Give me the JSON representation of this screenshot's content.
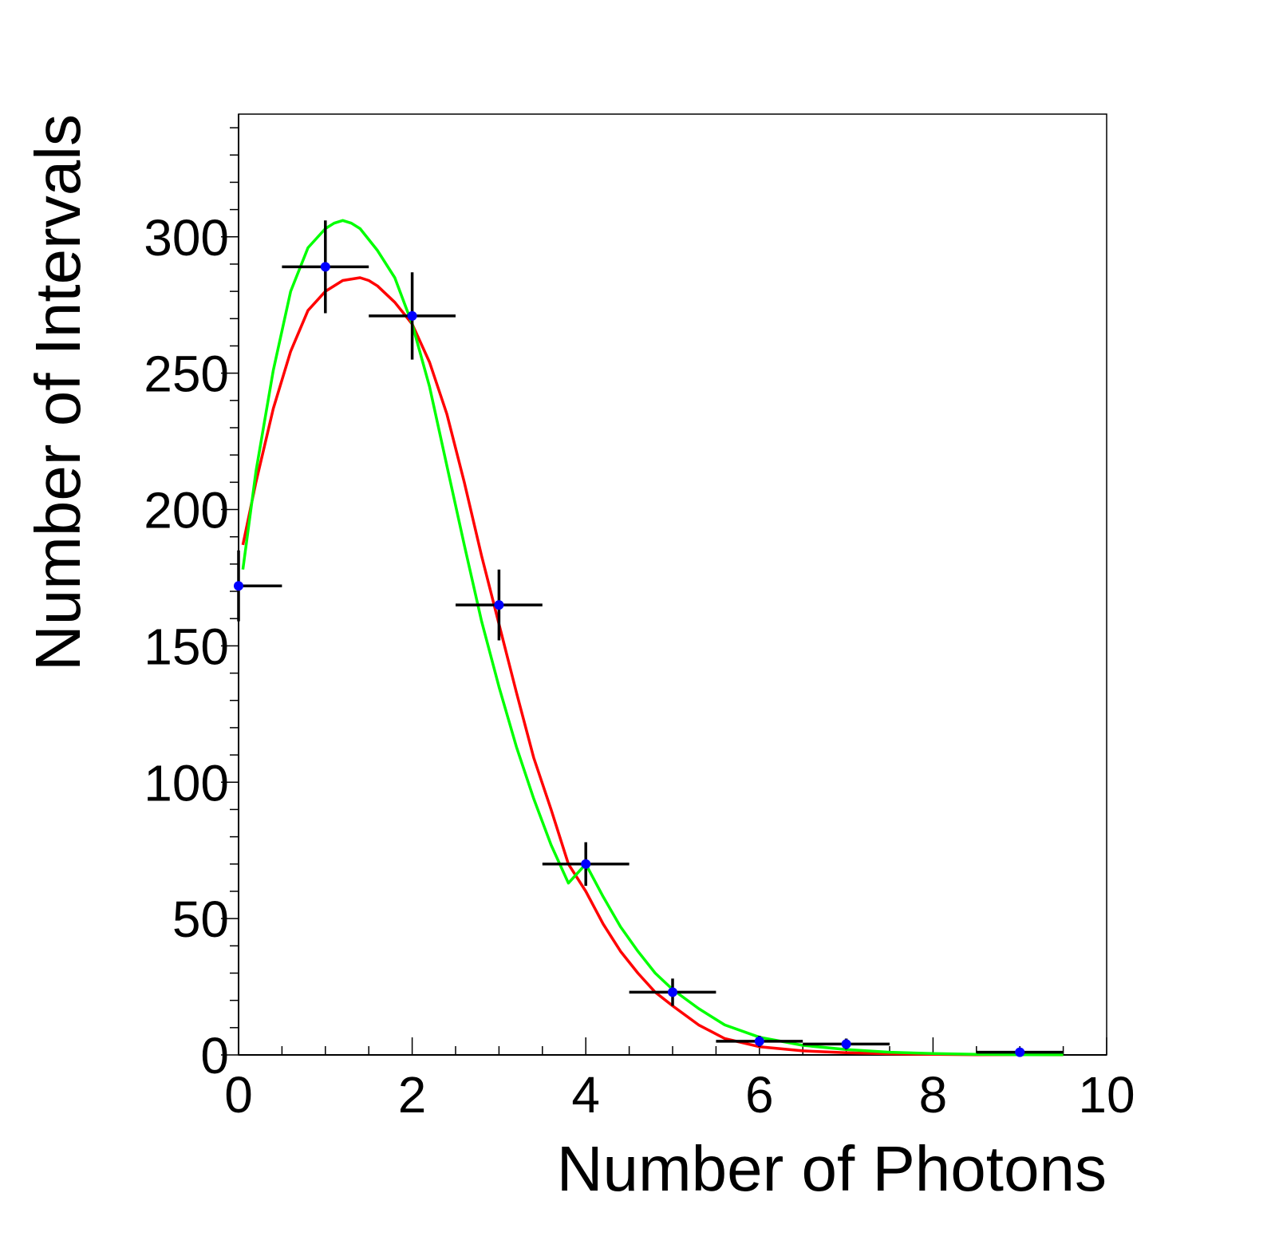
{
  "chart_data": {
    "type": "scatter",
    "title": "",
    "xlabel": "Number of Photons",
    "ylabel": "Number of Intervals",
    "xlim": [
      0,
      10
    ],
    "ylim": [
      0,
      345
    ],
    "grid": false,
    "legend": "none",
    "x_ticks": [
      0,
      2,
      4,
      6,
      8,
      10
    ],
    "x_tick_labels": [
      "0",
      "2",
      "4",
      "6",
      "8",
      "10"
    ],
    "y_ticks": [
      0,
      50,
      100,
      150,
      200,
      250,
      300
    ],
    "y_tick_labels": [
      "0",
      "50",
      "100",
      "150",
      "200",
      "250",
      "300"
    ],
    "data_points": {
      "color": "#0000ff",
      "errorbar_color": "#000000",
      "x": [
        0,
        1,
        2,
        3,
        4,
        5,
        6,
        7,
        9
      ],
      "y": [
        172,
        289,
        271,
        165,
        70,
        23,
        5,
        4,
        1
      ],
      "x_error": [
        0.5,
        0.5,
        0.5,
        0.5,
        0.5,
        0.5,
        0.5,
        0.5,
        0.5
      ],
      "y_error": [
        13,
        17,
        16,
        13,
        8,
        5,
        2,
        2,
        1
      ]
    },
    "curves": [
      {
        "color": "#ff0000",
        "x": [
          0.05,
          0.2,
          0.4,
          0.6,
          0.8,
          1.0,
          1.2,
          1.4,
          1.5,
          1.6,
          1.8,
          2.0,
          2.2,
          2.4,
          2.6,
          2.8,
          3.0,
          3.2,
          3.4,
          3.6,
          3.8,
          4.0,
          4.2,
          4.4,
          4.6,
          4.8,
          5.0,
          5.3,
          5.6,
          6.0,
          6.5,
          7.0,
          7.5,
          8.0,
          8.5,
          9.0,
          9.5
        ],
        "y": [
          187,
          210,
          237,
          258,
          273,
          280,
          284,
          285,
          284,
          282,
          276,
          268,
          254,
          235,
          210,
          183,
          158,
          133,
          109,
          90,
          70,
          60,
          48,
          38,
          30,
          23,
          18,
          11,
          6,
          3,
          1.5,
          0.8,
          0.4,
          0.2,
          0.1,
          0.05,
          0.02
        ]
      },
      {
        "color": "#00ff00",
        "x": [
          0.05,
          0.2,
          0.4,
          0.6,
          0.8,
          1.0,
          1.1,
          1.2,
          1.3,
          1.4,
          1.6,
          1.8,
          2.0,
          2.2,
          2.4,
          2.6,
          2.8,
          3.0,
          3.2,
          3.4,
          3.6,
          3.8,
          4.0,
          4.2,
          4.4,
          4.6,
          4.8,
          5.0,
          5.3,
          5.6,
          6.0,
          6.5,
          7.0,
          7.5,
          8.0,
          8.5,
          9.0,
          9.5
        ],
        "y": [
          178,
          214,
          251,
          280,
          296,
          303,
          305,
          306,
          305,
          303,
          295,
          285,
          268,
          245,
          216,
          187,
          159,
          135,
          113,
          94,
          77,
          63,
          70,
          58,
          47,
          38,
          30,
          24,
          17,
          11,
          6.5,
          3.5,
          2,
          1,
          0.5,
          0.2,
          0.1,
          0.05
        ]
      }
    ]
  }
}
